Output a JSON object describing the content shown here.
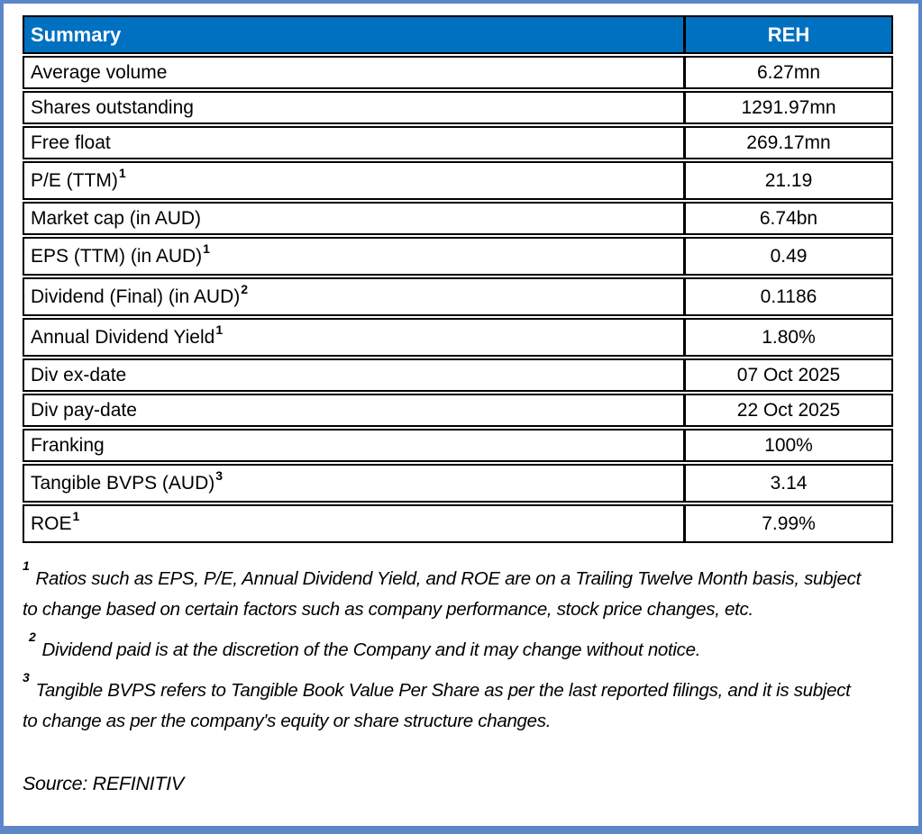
{
  "table": {
    "header": {
      "col1": "Summary",
      "col2": "REH"
    },
    "rows": [
      {
        "label": "Average volume",
        "sup": "",
        "value": "6.27mn"
      },
      {
        "label": "Shares outstanding",
        "sup": "",
        "value": "1291.97mn"
      },
      {
        "label": "Free float",
        "sup": "",
        "value": "269.17mn"
      },
      {
        "label": "P/E (TTM)",
        "sup": "1",
        "value": "21.19"
      },
      {
        "label": "Market cap (in AUD)",
        "sup": "",
        "value": "6.74bn"
      },
      {
        "label": "EPS (TTM) (in AUD)",
        "sup": "1",
        "value": "0.49"
      },
      {
        "label": "Dividend (Final) (in AUD)",
        "sup": "2",
        "value": "0.1186"
      },
      {
        "label": "Annual Dividend Yield",
        "sup": "1",
        "value": "1.80%"
      },
      {
        "label": "Div ex-date",
        "sup": "",
        "value": "07 Oct 2025"
      },
      {
        "label": "Div pay-date",
        "sup": "",
        "value": "22 Oct 2025"
      },
      {
        "label": "Franking",
        "sup": "",
        "value": "100%"
      },
      {
        "label": "Tangible BVPS (AUD)",
        "sup": "3",
        "value": "3.14"
      },
      {
        "label": "ROE",
        "sup": "1",
        "value": "7.99%"
      }
    ]
  },
  "footnotes": [
    {
      "marker": "1",
      "text": "Ratios such as EPS, P/E,  Annual Dividend Yield, and ROE are on a Trailing Twelve Month basis, subject to change based on certain factors such as company performance, stock price changes, etc."
    },
    {
      "marker": "2",
      "text": "Dividend paid is at the discretion of the Company and it may change without notice."
    },
    {
      "marker": "3",
      "text": "Tangible BVPS refers to Tangible Book Value Per Share as per the last reported filings, and it is subject to change as per the company's equity or share structure changes."
    }
  ],
  "source": "Source: REFINITIV",
  "colors": {
    "header_bg": "#0070C0",
    "header_text": "#FFFFFF",
    "frame_border": "#5B87C9",
    "table_border": "#000000"
  }
}
